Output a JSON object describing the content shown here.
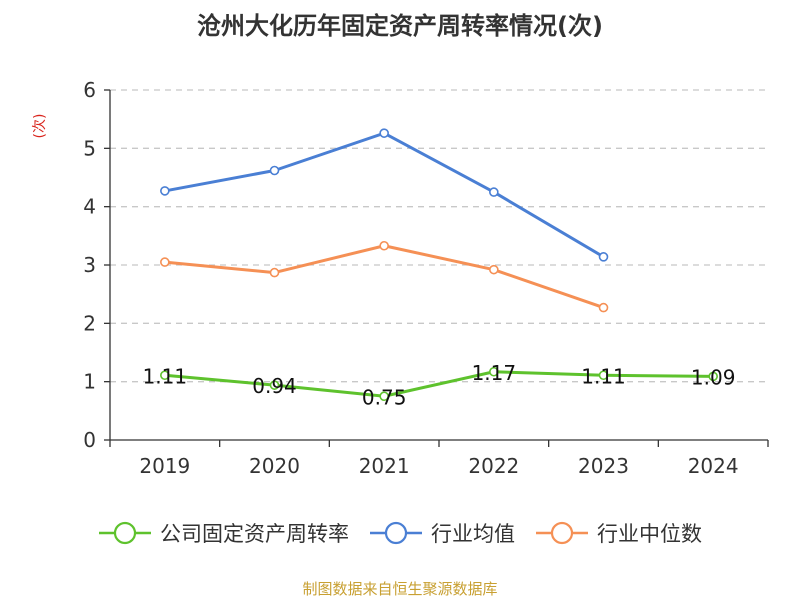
{
  "chart_data": {
    "type": "line",
    "title": "沧州大化历年固定资产周转率情况(次)",
    "ylabel": "(次)",
    "xlabel": "",
    "categories": [
      "2019",
      "2020",
      "2021",
      "2022",
      "2023",
      "2024"
    ],
    "ylim": [
      0,
      6
    ],
    "yticks": [
      0,
      1,
      2,
      3,
      4,
      5,
      6
    ],
    "grid": true,
    "legend_position": "bottom",
    "series": [
      {
        "name": "公司固定资产周转率",
        "color": "#5ec22d",
        "values": [
          1.11,
          0.94,
          0.75,
          1.17,
          1.11,
          1.09
        ],
        "labels": [
          "1.11",
          "0.94",
          "0.75",
          "1.17",
          "1.11",
          "1.09"
        ]
      },
      {
        "name": "行业均值",
        "color": "#4a7fd4",
        "values": [
          4.27,
          4.62,
          5.26,
          4.25,
          3.14,
          null
        ]
      },
      {
        "name": "行业中位数",
        "color": "#f59055",
        "values": [
          3.05,
          2.87,
          3.33,
          2.92,
          2.27,
          null
        ]
      }
    ],
    "source": "制图数据来自恒生聚源数据库"
  },
  "colors": {
    "axis": "#333333",
    "grid": "#c8c8c8",
    "ylabel": "#d9251d",
    "source": "#c8a032"
  }
}
